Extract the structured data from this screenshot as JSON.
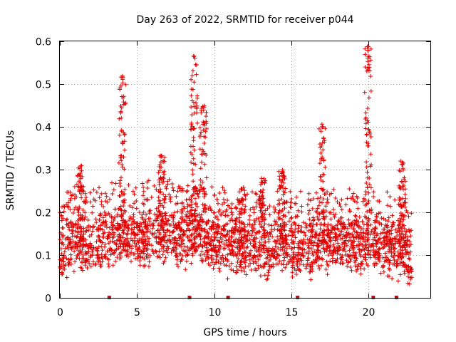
{
  "chart_data": {
    "type": "scatter",
    "title": "Day 263 of 2022, SRMTID for receiver p044",
    "xlabel": "GPS time / hours",
    "ylabel": "SRMTID / TECUs",
    "xlim": [
      0,
      24
    ],
    "ylim": [
      0,
      0.6
    ],
    "x_ticks": [
      "0",
      "5",
      "10",
      "15",
      "20"
    ],
    "x_tick_values": [
      0,
      5,
      10,
      15,
      20
    ],
    "y_ticks": [
      "0",
      "0.1",
      "0.2",
      "0.3",
      "0.4",
      "0.5",
      "0.6"
    ],
    "y_tick_values": [
      0,
      0.1,
      0.2,
      0.3,
      0.4,
      0.5,
      0.6
    ],
    "grid": true,
    "marker": "+",
    "color": "#e00000",
    "baseline": [
      [
        0.0,
        0.11
      ],
      [
        0.5,
        0.12
      ],
      [
        1.0,
        0.14
      ],
      [
        1.5,
        0.12
      ],
      [
        2.0,
        0.12
      ],
      [
        2.5,
        0.13
      ],
      [
        3.0,
        0.12
      ],
      [
        3.5,
        0.15
      ],
      [
        4.0,
        0.16
      ],
      [
        4.5,
        0.14
      ],
      [
        5.0,
        0.14
      ],
      [
        5.5,
        0.14
      ],
      [
        6.0,
        0.15
      ],
      [
        6.5,
        0.15
      ],
      [
        7.0,
        0.15
      ],
      [
        7.5,
        0.14
      ],
      [
        8.0,
        0.14
      ],
      [
        8.5,
        0.14
      ],
      [
        9.0,
        0.15
      ],
      [
        9.5,
        0.14
      ],
      [
        10.0,
        0.13
      ],
      [
        10.5,
        0.13
      ],
      [
        11.0,
        0.12
      ],
      [
        11.5,
        0.11
      ],
      [
        12.0,
        0.11
      ],
      [
        12.5,
        0.12
      ],
      [
        13.0,
        0.12
      ],
      [
        13.5,
        0.09
      ],
      [
        14.0,
        0.12
      ],
      [
        14.5,
        0.13
      ],
      [
        15.0,
        0.12
      ],
      [
        15.5,
        0.12
      ],
      [
        16.0,
        0.12
      ],
      [
        16.5,
        0.12
      ],
      [
        17.0,
        0.12
      ],
      [
        17.5,
        0.13
      ],
      [
        18.0,
        0.13
      ],
      [
        18.5,
        0.13
      ],
      [
        19.0,
        0.13
      ],
      [
        19.5,
        0.12
      ],
      [
        20.0,
        0.13
      ],
      [
        20.5,
        0.13
      ],
      [
        21.0,
        0.12
      ],
      [
        21.5,
        0.12
      ],
      [
        22.0,
        0.11
      ],
      [
        22.5,
        0.09
      ],
      [
        22.8,
        0.08
      ]
    ],
    "spikes": [
      {
        "center": 4.05,
        "peak": 0.52
      },
      {
        "center": 8.7,
        "peak": 0.57
      },
      {
        "center": 9.3,
        "peak": 0.45
      },
      {
        "center": 6.6,
        "peak": 0.34
      },
      {
        "center": 1.35,
        "peak": 0.31
      },
      {
        "center": 14.4,
        "peak": 0.3
      },
      {
        "center": 17.0,
        "peak": 0.41
      },
      {
        "center": 19.95,
        "peak": 0.59
      },
      {
        "center": 22.2,
        "peak": 0.32
      },
      {
        "center": 13.1,
        "peak": 0.28
      },
      {
        "center": 11.8,
        "peak": 0.26
      }
    ],
    "data_gaps_hours": [
      3.2,
      8.4,
      10.9,
      15.4,
      20.3,
      21.8
    ]
  }
}
